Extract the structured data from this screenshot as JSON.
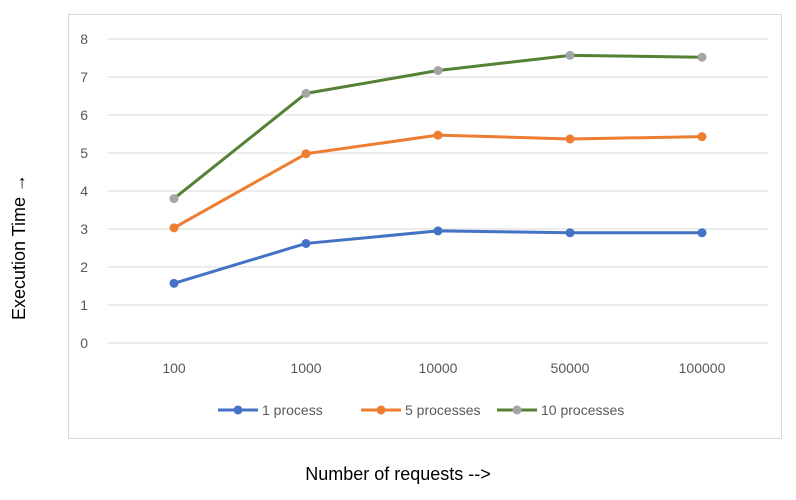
{
  "chart_data": {
    "type": "line",
    "categories": [
      "100",
      "1000",
      "10000",
      "50000",
      "100000"
    ],
    "series": [
      {
        "name": "1 process",
        "values": [
          1.57,
          2.62,
          2.95,
          2.9,
          2.9
        ],
        "color": "#4472c4"
      },
      {
        "name": "5 processes",
        "values": [
          3.03,
          4.98,
          5.47,
          5.37,
          5.43
        ],
        "color": "#ed7d31",
        "marker_color": "#ed7d31"
      },
      {
        "name": "10 processes",
        "values": [
          3.8,
          6.57,
          7.17,
          7.57,
          7.52
        ],
        "color": "#548235",
        "marker_color": "#a5a5a5"
      }
    ],
    "xlabel": "Number of requests -->",
    "ylabel": "Execution Time →",
    "ylim": [
      0,
      8
    ],
    "yticks": [
      "0",
      "1",
      "2",
      "3",
      "4",
      "5",
      "6",
      "7",
      "8"
    ],
    "grid": true,
    "legend_position": "bottom"
  }
}
